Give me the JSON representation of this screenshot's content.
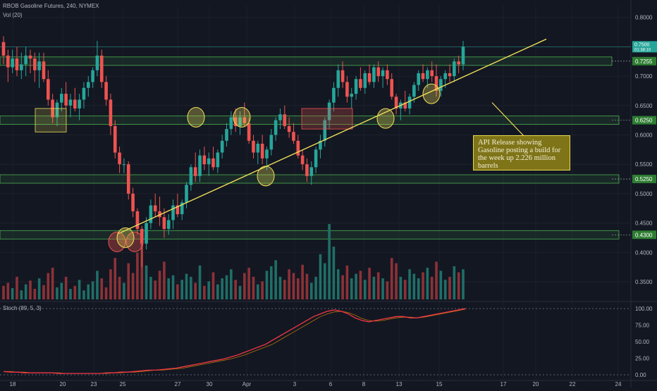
{
  "header": {
    "symbol_line": "RBOB Gasoline Futures, 240, NYMEX",
    "volume_label": "Vol (20)",
    "stoch_label": "Stoch (89, 5, 3)"
  },
  "annotation": {
    "text": "API Release showing Gasoline posting a build for the week up 2.226 million barrels"
  },
  "colors": {
    "background": "#131722",
    "up": "#26a69a",
    "down": "#ef5350",
    "zone_green": "#4caf50",
    "trendline": "#f1e05a",
    "stoch": "#f23645"
  },
  "chart_data": [
    {
      "type": "candlestick",
      "title": "RBOB Gasoline Futures, 240, NYMEX",
      "ylim": [
        0.32,
        0.82
      ],
      "y_ticks": [
        "0.3500",
        "0.4000",
        "0.4500",
        "0.5000",
        "0.5500",
        "0.6000",
        "0.6500",
        "0.7000",
        "0.7500",
        "0.8000"
      ],
      "x_ticks": [
        "18",
        "20",
        "23",
        "25",
        "27",
        "30",
        "Apr",
        "3",
        "6",
        "8",
        "13",
        "15",
        "17",
        "20",
        "22",
        "24"
      ],
      "last_price": "0.7500",
      "countdown": "01:38:10",
      "support_resistance_levels": [
        {
          "value": 0.7255,
          "label": "0.7255"
        },
        {
          "value": 0.625,
          "label": "0.6250"
        },
        {
          "value": 0.525,
          "label": "0.5250"
        },
        {
          "value": 0.43,
          "label": "0.4300"
        }
      ],
      "candles": [
        [
          0.758,
          0.768,
          0.72,
          0.735
        ],
        [
          0.735,
          0.745,
          0.69,
          0.715
        ],
        [
          0.715,
          0.745,
          0.705,
          0.73
        ],
        [
          0.73,
          0.75,
          0.7,
          0.71
        ],
        [
          0.71,
          0.74,
          0.695,
          0.72
        ],
        [
          0.72,
          0.75,
          0.7,
          0.735
        ],
        [
          0.735,
          0.745,
          0.705,
          0.73
        ],
        [
          0.73,
          0.74,
          0.69,
          0.71
        ],
        [
          0.71,
          0.74,
          0.68,
          0.725
        ],
        [
          0.725,
          0.74,
          0.69,
          0.695
        ],
        [
          0.695,
          0.71,
          0.65,
          0.66
        ],
        [
          0.66,
          0.67,
          0.62,
          0.63
        ],
        [
          0.63,
          0.66,
          0.615,
          0.655
        ],
        [
          0.655,
          0.68,
          0.64,
          0.67
        ],
        [
          0.67,
          0.69,
          0.645,
          0.65
        ],
        [
          0.65,
          0.67,
          0.63,
          0.66
        ],
        [
          0.66,
          0.68,
          0.64,
          0.645
        ],
        [
          0.645,
          0.67,
          0.625,
          0.66
        ],
        [
          0.66,
          0.69,
          0.645,
          0.68
        ],
        [
          0.68,
          0.7,
          0.665,
          0.69
        ],
        [
          0.69,
          0.715,
          0.68,
          0.71
        ],
        [
          0.71,
          0.76,
          0.7,
          0.735
        ],
        [
          0.735,
          0.745,
          0.68,
          0.69
        ],
        [
          0.69,
          0.7,
          0.65,
          0.66
        ],
        [
          0.66,
          0.67,
          0.6,
          0.615
        ],
        [
          0.615,
          0.625,
          0.56,
          0.57
        ],
        [
          0.57,
          0.58,
          0.535,
          0.55
        ],
        [
          0.55,
          0.56,
          0.535,
          0.55
        ],
        [
          0.55,
          0.555,
          0.49,
          0.5
        ],
        [
          0.5,
          0.51,
          0.46,
          0.47
        ],
        [
          0.47,
          0.475,
          0.43,
          0.44
        ],
        [
          0.44,
          0.445,
          0.375,
          0.415
        ],
        [
          0.415,
          0.46,
          0.405,
          0.45
        ],
        [
          0.45,
          0.49,
          0.44,
          0.48
        ],
        [
          0.48,
          0.5,
          0.46,
          0.47
        ],
        [
          0.47,
          0.495,
          0.445,
          0.46
        ],
        [
          0.46,
          0.475,
          0.425,
          0.44
        ],
        [
          0.44,
          0.465,
          0.43,
          0.455
        ],
        [
          0.455,
          0.49,
          0.44,
          0.48
        ],
        [
          0.48,
          0.5,
          0.46,
          0.465
        ],
        [
          0.465,
          0.49,
          0.455,
          0.485
        ],
        [
          0.485,
          0.52,
          0.475,
          0.515
        ],
        [
          0.515,
          0.55,
          0.505,
          0.545
        ],
        [
          0.545,
          0.57,
          0.52,
          0.53
        ],
        [
          0.53,
          0.575,
          0.52,
          0.565
        ],
        [
          0.565,
          0.58,
          0.54,
          0.55
        ],
        [
          0.55,
          0.57,
          0.53,
          0.56
        ],
        [
          0.56,
          0.58,
          0.54,
          0.545
        ],
        [
          0.545,
          0.575,
          0.535,
          0.57
        ],
        [
          0.57,
          0.6,
          0.56,
          0.59
        ],
        [
          0.59,
          0.62,
          0.58,
          0.61
        ],
        [
          0.61,
          0.64,
          0.6,
          0.63
        ],
        [
          0.63,
          0.645,
          0.605,
          0.615
        ],
        [
          0.615,
          0.64,
          0.6,
          0.63
        ],
        [
          0.63,
          0.655,
          0.615,
          0.62
        ],
        [
          0.62,
          0.63,
          0.585,
          0.59
        ],
        [
          0.59,
          0.6,
          0.56,
          0.57
        ],
        [
          0.57,
          0.59,
          0.55,
          0.585
        ],
        [
          0.585,
          0.6,
          0.55,
          0.56
        ],
        [
          0.56,
          0.58,
          0.54,
          0.575
        ],
        [
          0.575,
          0.61,
          0.565,
          0.6
        ],
        [
          0.6,
          0.63,
          0.59,
          0.625
        ],
        [
          0.625,
          0.645,
          0.61,
          0.635
        ],
        [
          0.635,
          0.65,
          0.61,
          0.615
        ],
        [
          0.615,
          0.63,
          0.595,
          0.605
        ],
        [
          0.605,
          0.62,
          0.585,
          0.59
        ],
        [
          0.59,
          0.6,
          0.56,
          0.565
        ],
        [
          0.565,
          0.575,
          0.54,
          0.55
        ],
        [
          0.55,
          0.56,
          0.52,
          0.53
        ],
        [
          0.53,
          0.555,
          0.515,
          0.545
        ],
        [
          0.545,
          0.58,
          0.535,
          0.575
        ],
        [
          0.575,
          0.6,
          0.56,
          0.59
        ],
        [
          0.59,
          0.63,
          0.58,
          0.625
        ],
        [
          0.625,
          0.66,
          0.61,
          0.655
        ],
        [
          0.655,
          0.69,
          0.64,
          0.68
        ],
        [
          0.68,
          0.72,
          0.665,
          0.71
        ],
        [
          0.71,
          0.725,
          0.68,
          0.69
        ],
        [
          0.69,
          0.7,
          0.655,
          0.665
        ],
        [
          0.665,
          0.68,
          0.645,
          0.67
        ],
        [
          0.67,
          0.7,
          0.66,
          0.695
        ],
        [
          0.695,
          0.715,
          0.675,
          0.68
        ],
        [
          0.68,
          0.71,
          0.67,
          0.705
        ],
        [
          0.705,
          0.72,
          0.685,
          0.69
        ],
        [
          0.69,
          0.72,
          0.68,
          0.715
        ],
        [
          0.715,
          0.725,
          0.69,
          0.7
        ],
        [
          0.7,
          0.715,
          0.68,
          0.71
        ],
        [
          0.71,
          0.72,
          0.685,
          0.695
        ],
        [
          0.695,
          0.705,
          0.66,
          0.665
        ],
        [
          0.665,
          0.67,
          0.635,
          0.645
        ],
        [
          0.645,
          0.66,
          0.625,
          0.655
        ],
        [
          0.655,
          0.675,
          0.64,
          0.645
        ],
        [
          0.645,
          0.67,
          0.635,
          0.665
        ],
        [
          0.665,
          0.69,
          0.655,
          0.685
        ],
        [
          0.685,
          0.71,
          0.675,
          0.705
        ],
        [
          0.705,
          0.72,
          0.69,
          0.695
        ],
        [
          0.695,
          0.715,
          0.68,
          0.71
        ],
        [
          0.71,
          0.725,
          0.69,
          0.7
        ],
        [
          0.7,
          0.72,
          0.665,
          0.675
        ],
        [
          0.675,
          0.7,
          0.665,
          0.695
        ],
        [
          0.695,
          0.71,
          0.68,
          0.705
        ],
        [
          0.705,
          0.72,
          0.69,
          0.7
        ],
        [
          0.7,
          0.73,
          0.69,
          0.725
        ],
        [
          0.725,
          0.735,
          0.705,
          0.72
        ],
        [
          0.72,
          0.76,
          0.71,
          0.75
        ]
      ]
    },
    {
      "type": "bar",
      "title": "Vol (20)",
      "volumes": [
        18,
        22,
        15,
        30,
        12,
        20,
        25,
        14,
        28,
        19,
        35,
        42,
        16,
        22,
        30,
        14,
        18,
        26,
        12,
        20,
        24,
        38,
        28,
        16,
        40,
        55,
        30,
        22,
        48,
        35,
        62,
        80,
        45,
        30,
        25,
        38,
        50,
        28,
        32,
        20,
        26,
        34,
        30,
        22,
        45,
        18,
        24,
        36,
        20,
        28,
        32,
        40,
        26,
        18,
        35,
        42,
        30,
        20,
        24,
        38,
        44,
        52,
        30,
        26,
        40,
        35,
        28,
        46,
        34,
        22,
        30,
        60,
        48,
        100,
        70,
        40,
        32,
        45,
        28,
        34,
        38,
        26,
        42,
        30,
        36,
        28,
        24,
        55,
        48,
        30,
        26,
        40,
        34,
        28,
        36,
        42,
        30,
        50,
        38,
        26,
        30,
        44,
        36,
        40
      ]
    },
    {
      "type": "line",
      "title": "Stoch (89, 5, 3)",
      "ylim": [
        0,
        100
      ],
      "y_ticks": [
        "0.00",
        "25.00",
        "50.00",
        "75.00",
        "100.00"
      ],
      "k_values": [
        5,
        4,
        4,
        3,
        3,
        3,
        3,
        3,
        2,
        2,
        2,
        2,
        2,
        2,
        2,
        3,
        3,
        4,
        4,
        5,
        6,
        7,
        7,
        8,
        9,
        10,
        12,
        14,
        16,
        18,
        20,
        22,
        24,
        27,
        30,
        34,
        38,
        42,
        46,
        52,
        58,
        64,
        70,
        76,
        82,
        88,
        92,
        96,
        98,
        96,
        92,
        86,
        82,
        80,
        82,
        84,
        86,
        88,
        88,
        86,
        86,
        88,
        90,
        92,
        94,
        96,
        98,
        100
      ],
      "d_values": [
        5,
        5,
        4,
        4,
        3,
        3,
        3,
        3,
        3,
        2,
        2,
        2,
        2,
        2,
        2,
        2,
        3,
        3,
        4,
        4,
        5,
        6,
        7,
        7,
        8,
        9,
        10,
        12,
        14,
        16,
        18,
        20,
        22,
        24,
        27,
        30,
        34,
        38,
        42,
        46,
        52,
        58,
        64,
        70,
        76,
        82,
        88,
        92,
        95,
        96,
        94,
        90,
        85,
        82,
        81,
        82,
        84,
        86,
        87,
        87,
        86,
        87,
        89,
        91,
        93,
        95,
        97,
        99
      ]
    }
  ]
}
